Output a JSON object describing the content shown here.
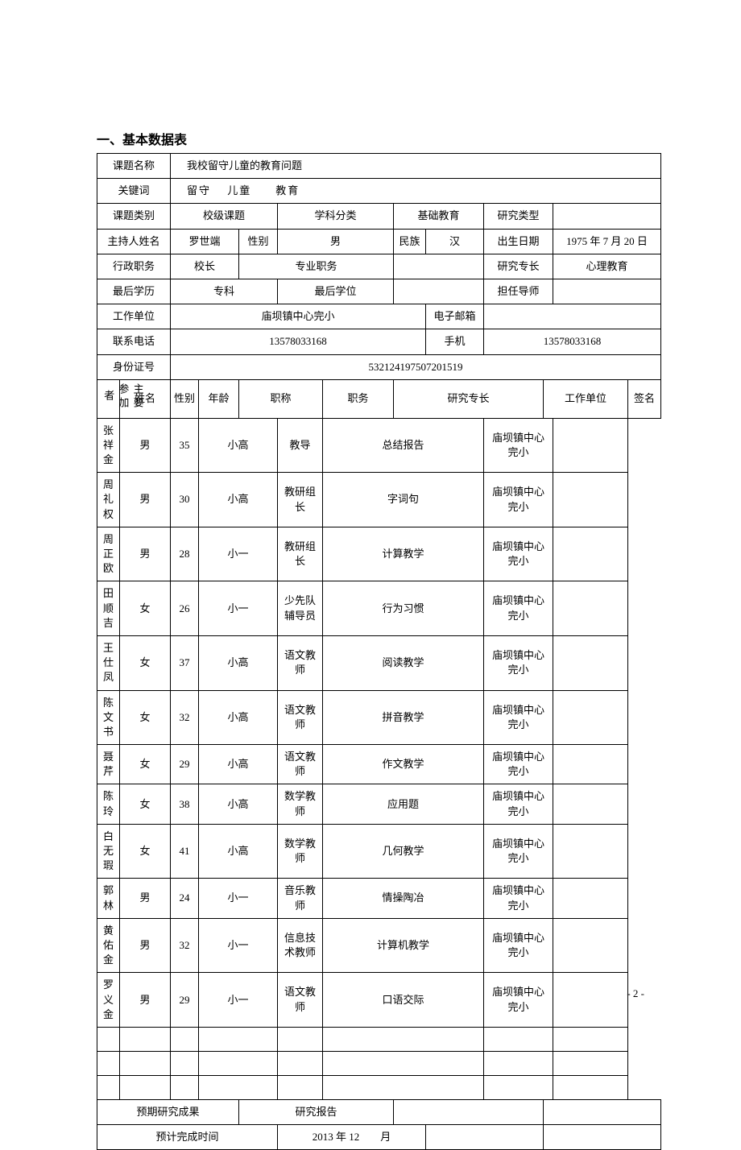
{
  "title": "一、基本数据表",
  "labels": {
    "project_name": "课题名称",
    "keywords": "关键词",
    "project_type": "课题类别",
    "subject": "学科分类",
    "research_type": "研究类型",
    "host_name": "主持人姓名",
    "gender": "性别",
    "ethnicity": "民族",
    "birthdate": "出生日期",
    "admin_post": "行政职务",
    "pro_title": "专业职务",
    "specialty": "研究专长",
    "education": "最后学历",
    "degree": "最后学位",
    "advisor": "担任导师",
    "work_unit": "工作单位",
    "email": "电子邮箱",
    "phone": "联系电话",
    "mobile": "手机",
    "id_number": "身份证号",
    "participants": "主要参加者",
    "p_name": "姓名",
    "p_gender": "性别",
    "p_age": "年龄",
    "p_title": "职称",
    "p_post": "职务",
    "p_specialty": "研究专长",
    "p_unit": "工作单位",
    "p_sign": "签名",
    "expected_result": "预期研究成果",
    "expected_result_val": "研究报告",
    "expected_time": "预计完成时间"
  },
  "values": {
    "project_name": "我校留守儿童的教育问题",
    "keywords": "留守　 儿童　　教育",
    "project_type": "校级课题",
    "subject": "基础教育",
    "research_type": "",
    "host_name": "罗世端",
    "gender": "男",
    "ethnicity": "汉",
    "birthdate": "1975 年 7 月 20 日",
    "admin_post": "校长",
    "pro_title": "",
    "specialty": "心理教育",
    "education": "专科",
    "degree": "",
    "advisor": "",
    "work_unit": "庙坝镇中心完小",
    "email": "",
    "phone": "13578033168",
    "mobile": "13578033168",
    "id_number": "532124197507201519",
    "expected_time": "2013 年 12　　月"
  },
  "participants": [
    {
      "name": "张祥金",
      "gender": "男",
      "age": "35",
      "title": "小高",
      "post": "教导",
      "specialty": "总结报告",
      "unit": "庙坝镇中心完小"
    },
    {
      "name": "周礼权",
      "gender": "男",
      "age": "30",
      "title": "小高",
      "post": "教研组长",
      "specialty": "字词句",
      "unit": "庙坝镇中心完小"
    },
    {
      "name": "周正欧",
      "gender": "男",
      "age": "28",
      "title": "小一",
      "post": "教研组长",
      "specialty": "计算教学",
      "unit": "庙坝镇中心完小"
    },
    {
      "name": "田顺吉",
      "gender": "女",
      "age": "26",
      "title": "小一",
      "post": "少先队辅导员",
      "specialty": "行为习惯",
      "unit": "庙坝镇中心完小"
    },
    {
      "name": "王仕凤",
      "gender": "女",
      "age": "37",
      "title": "小高",
      "post": "语文教师",
      "specialty": "阅读教学",
      "unit": "庙坝镇中心完小"
    },
    {
      "name": "陈文书",
      "gender": "女",
      "age": "32",
      "title": "小高",
      "post": "语文教师",
      "specialty": "拼音教学",
      "unit": "庙坝镇中心完小"
    },
    {
      "name": "聂　芹",
      "gender": "女",
      "age": "29",
      "title": "小高",
      "post": "语文教师",
      "specialty": "作文教学",
      "unit": "庙坝镇中心完小"
    },
    {
      "name": "陈　玲",
      "gender": "女",
      "age": "38",
      "title": "小高",
      "post": "数学教师",
      "specialty": "应用题",
      "unit": "庙坝镇中心完小"
    },
    {
      "name": "白无瑕",
      "gender": "女",
      "age": "41",
      "title": "小高",
      "post": "数学教师",
      "specialty": "几何教学",
      "unit": "庙坝镇中心完小"
    },
    {
      "name": "郭　林",
      "gender": "男",
      "age": "24",
      "title": "小一",
      "post": "音乐教师",
      "specialty": "情操陶冶",
      "unit": "庙坝镇中心完小"
    },
    {
      "name": "黄佑金",
      "gender": "男",
      "age": "32",
      "title": "小一",
      "post": "信息技术教师",
      "specialty": "计算机教学",
      "unit": "庙坝镇中心完小"
    },
    {
      "name": "罗义金",
      "gender": "男",
      "age": "29",
      "title": "小一",
      "post": "语文教师",
      "specialty": "口语交际",
      "unit": "庙坝镇中心完小"
    },
    {
      "name": "",
      "gender": "",
      "age": "",
      "title": "",
      "post": "",
      "specialty": "",
      "unit": ""
    },
    {
      "name": "",
      "gender": "",
      "age": "",
      "title": "",
      "post": "",
      "specialty": "",
      "unit": ""
    },
    {
      "name": "",
      "gender": "",
      "age": "",
      "title": "",
      "post": "",
      "specialty": "",
      "unit": ""
    }
  ],
  "page": "- 2 -"
}
